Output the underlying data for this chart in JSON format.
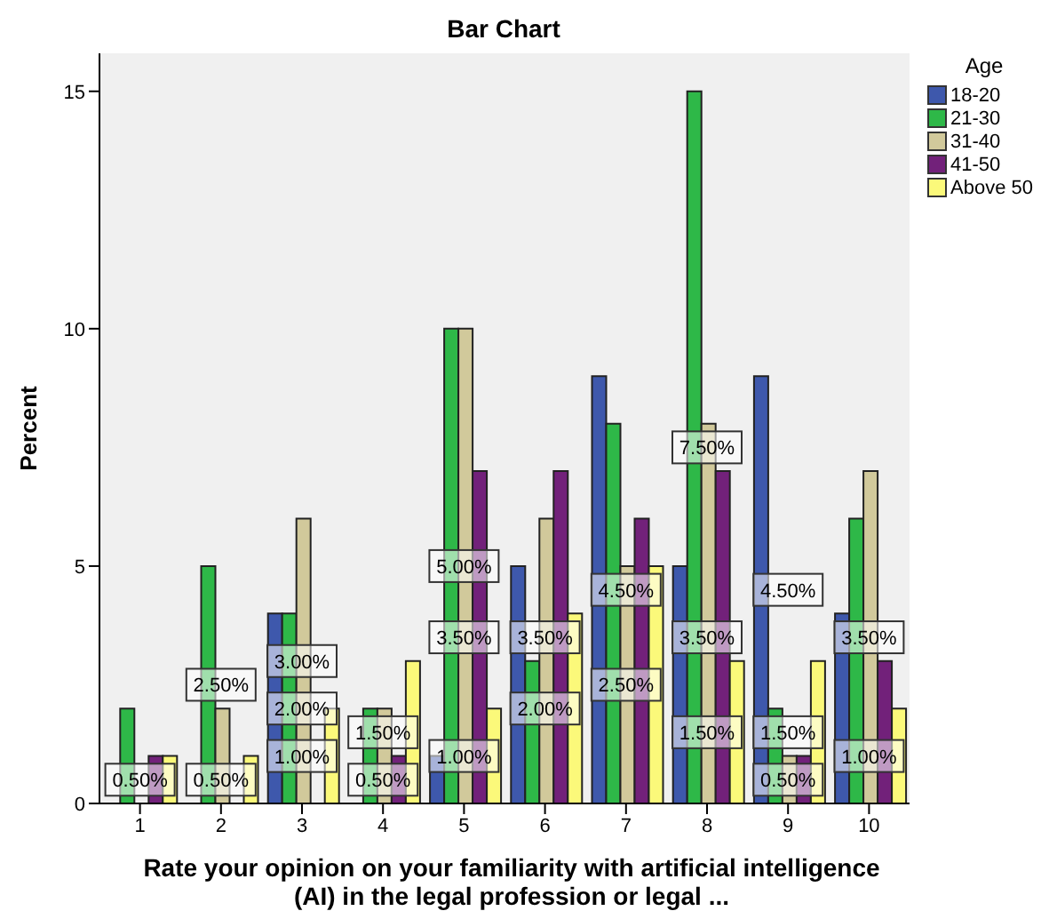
{
  "chart_data": {
    "type": "bar",
    "title": "Bar Chart",
    "xlabel": "Rate your opinion on your familiarity with artificial intelligence (AI) in the legal profession or legal ...",
    "ylabel": "Percent",
    "legend_title": "Age",
    "legend": "top right",
    "categories": [
      "1",
      "2",
      "3",
      "4",
      "5",
      "6",
      "7",
      "8",
      "9",
      "10"
    ],
    "ylim": [
      0,
      15.8
    ],
    "yticks": [
      0,
      5,
      10,
      15
    ],
    "series": [
      {
        "name": "18-20",
        "color": "#3e58ac",
        "values": [
          0,
          0,
          4,
          0,
          1,
          5,
          9,
          5,
          9,
          4
        ]
      },
      {
        "name": "21-30",
        "color": "#2eb848",
        "values": [
          2,
          5,
          4,
          2,
          10,
          3,
          8,
          15,
          2,
          6
        ]
      },
      {
        "name": "31-40",
        "color": "#d1c99b",
        "values": [
          0,
          2,
          6,
          2,
          10,
          6,
          5,
          8,
          1,
          7
        ]
      },
      {
        "name": "41-50",
        "color": "#72217a",
        "values": [
          1,
          0,
          0,
          1,
          7,
          7,
          6,
          7,
          1,
          3
        ]
      },
      {
        "name": "Above 50",
        "color": "#fbf97a",
        "values": [
          1,
          1,
          2,
          3,
          2,
          4,
          5,
          3,
          3,
          2
        ]
      }
    ],
    "annotations": [
      {
        "text": "0.50%",
        "x": "1",
        "y": 0.5
      },
      {
        "text": "2.50%",
        "x": "2",
        "y": 2.5
      },
      {
        "text": "0.50%",
        "x": "2",
        "y": 0.5
      },
      {
        "text": "3.00%",
        "x": "3",
        "y": 3.0
      },
      {
        "text": "2.00%",
        "x": "3",
        "y": 2.0
      },
      {
        "text": "1.00%",
        "x": "3",
        "y": 1.0
      },
      {
        "text": "1.50%",
        "x": "4",
        "y": 1.5
      },
      {
        "text": "0.50%",
        "x": "4",
        "y": 0.5
      },
      {
        "text": "5.00%",
        "x": "5",
        "y": 5.0
      },
      {
        "text": "3.50%",
        "x": "5",
        "y": 3.5
      },
      {
        "text": "1.00%",
        "x": "5",
        "y": 1.0
      },
      {
        "text": "3.50%",
        "x": "6",
        "y": 3.5
      },
      {
        "text": "2.00%",
        "x": "6",
        "y": 2.0
      },
      {
        "text": "4.50%",
        "x": "7",
        "y": 4.5
      },
      {
        "text": "2.50%",
        "x": "7",
        "y": 2.5
      },
      {
        "text": "7.50%",
        "x": "8",
        "y": 7.5
      },
      {
        "text": "3.50%",
        "x": "8",
        "y": 3.5
      },
      {
        "text": "1.50%",
        "x": "8",
        "y": 1.5
      },
      {
        "text": "4.50%",
        "x": "9",
        "y": 4.5
      },
      {
        "text": "1.50%",
        "x": "9",
        "y": 1.5
      },
      {
        "text": "0.50%",
        "x": "9",
        "y": 0.5
      },
      {
        "text": "3.50%",
        "x": "10",
        "y": 3.5
      },
      {
        "text": "1.00%",
        "x": "10",
        "y": 1.0
      }
    ]
  }
}
